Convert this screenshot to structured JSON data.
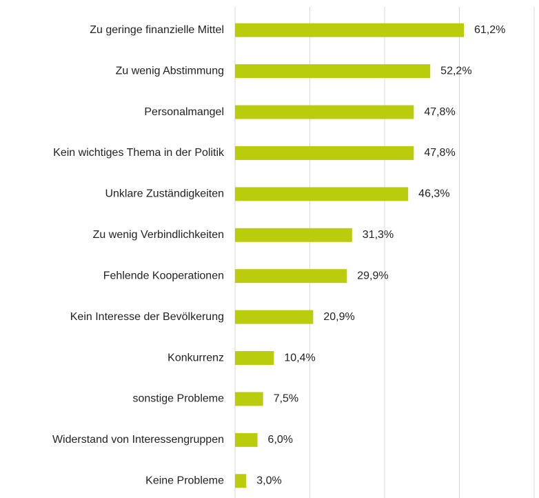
{
  "chart_data": {
    "type": "barh",
    "categories": [
      "Zu geringe finanzielle Mittel",
      "Zu wenig Abstimmung",
      "Personalmangel",
      "Kein wichtiges Thema in der Politik",
      "Unklare Zuständigkeiten",
      "Zu wenig Verbindlichkeiten",
      "Fehlende Kooperationen",
      "Kein Interesse der Bevölkerung",
      "Konkurrenz",
      "sonstige Probleme",
      "Widerstand von Interessengruppen",
      "Keine Probleme"
    ],
    "values": [
      61.2,
      52.2,
      47.8,
      47.8,
      46.3,
      31.3,
      29.9,
      20.9,
      10.4,
      7.5,
      6.0,
      3.0
    ],
    "value_labels": [
      "61,2%",
      "52,2%",
      "47,8%",
      "47,8%",
      "46,3%",
      "31,3%",
      "29,9%",
      "20,9%",
      "10,4%",
      "7,5%",
      "6,0%",
      "3,0%"
    ],
    "color": "#bacd0c",
    "xlim": [
      0,
      80
    ],
    "xticks": [
      0,
      20,
      40,
      60,
      80
    ],
    "grid": true
  }
}
